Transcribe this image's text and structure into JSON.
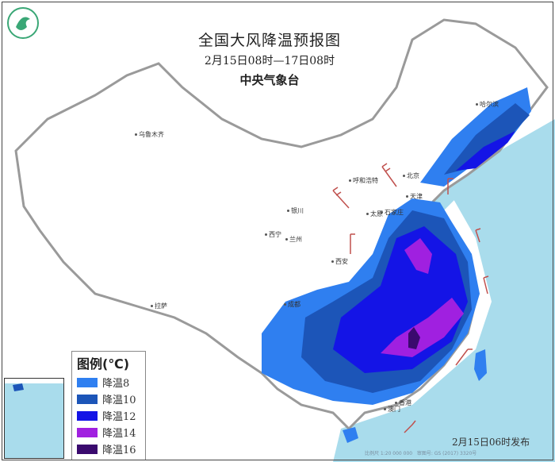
{
  "header": {
    "title": "全国大风降温预报图",
    "period": "2月15日08时—17日08时",
    "issuer": "中央气象台"
  },
  "legend": {
    "title": "图例(℃)",
    "items": [
      {
        "label": "降温8",
        "color": "#2f7ff0"
      },
      {
        "label": "降温10",
        "color": "#1c55b8"
      },
      {
        "label": "降温12",
        "color": "#1414e6"
      },
      {
        "label": "降温14",
        "color": "#a020e0"
      },
      {
        "label": "降温16",
        "color": "#3a0a6e"
      }
    ]
  },
  "cities": [
    {
      "name": "乌鲁木齐"
    },
    {
      "name": "哈尔滨"
    },
    {
      "name": "北京"
    },
    {
      "name": "天津"
    },
    {
      "name": "呼和浩特"
    },
    {
      "name": "银川"
    },
    {
      "name": "太原"
    },
    {
      "name": "石家庄"
    },
    {
      "name": "西宁"
    },
    {
      "name": "兰州"
    },
    {
      "name": "西安"
    },
    {
      "name": "拉萨"
    },
    {
      "name": "成都"
    },
    {
      "name": "香港"
    },
    {
      "name": "澳门"
    }
  ],
  "footer": {
    "published": "2月15日06时发布",
    "scale": "比例尺 1:20 000 000",
    "review_no": "审图号: GS (2017) 3320号"
  },
  "colors": {
    "ocean": "#a9dcec",
    "land": "#ffffff",
    "border": "#9a9a9a",
    "wind_barb": "#c0504d"
  }
}
